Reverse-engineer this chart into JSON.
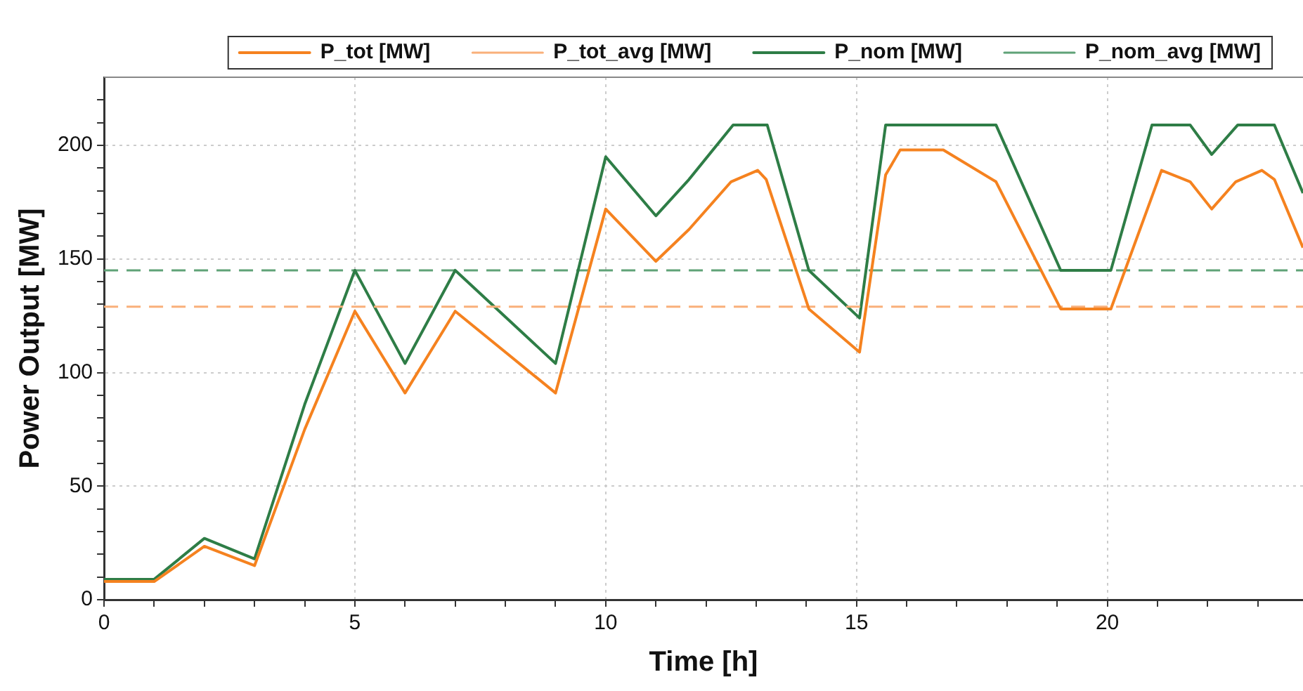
{
  "chart_data": {
    "type": "line",
    "xlabel": "Time [h]",
    "ylabel": "Power Output [MW]",
    "xlim": [
      0,
      23.9
    ],
    "ylim": [
      0,
      230
    ],
    "xticks": [
      0,
      {
        "value": 1,
        "label": null
      },
      {
        "value": 2,
        "label": null
      },
      {
        "value": 3,
        "label": null
      },
      {
        "value": 4,
        "label": null
      },
      5,
      {
        "value": 6,
        "label": null
      },
      {
        "value": 7,
        "label": null
      },
      {
        "value": 8,
        "label": null
      },
      {
        "value": 9,
        "label": null
      },
      10,
      {
        "value": 11,
        "label": null
      },
      {
        "value": 12,
        "label": null
      },
      {
        "value": 13,
        "label": null
      },
      {
        "value": 14,
        "label": null
      },
      15,
      {
        "value": 16,
        "label": null
      },
      {
        "value": 17,
        "label": null
      },
      {
        "value": 18,
        "label": null
      },
      {
        "value": 19,
        "label": null
      },
      20,
      {
        "value": 21,
        "label": null
      },
      {
        "value": 22,
        "label": null
      },
      {
        "value": 23,
        "label": null
      }
    ],
    "yticks": [
      0,
      {
        "value": 10,
        "label": null
      },
      {
        "value": 20,
        "label": null
      },
      {
        "value": 30,
        "label": null
      },
      {
        "value": 40,
        "label": null
      },
      50,
      {
        "value": 60,
        "label": null
      },
      {
        "value": 70,
        "label": null
      },
      {
        "value": 80,
        "label": null
      },
      {
        "value": 90,
        "label": null
      },
      100,
      {
        "value": 110,
        "label": null
      },
      {
        "value": 120,
        "label": null
      },
      {
        "value": 130,
        "label": null
      },
      {
        "value": 140,
        "label": null
      },
      150,
      {
        "value": 160,
        "label": null
      },
      {
        "value": 170,
        "label": null
      },
      {
        "value": 180,
        "label": null
      },
      {
        "value": 190,
        "label": null
      },
      200,
      {
        "value": 210,
        "label": null
      },
      {
        "value": 220,
        "label": null
      }
    ],
    "grid": true,
    "legend": "top",
    "marker": "none",
    "series": [
      {
        "name": "P_tot [MW]",
        "color": "#f5821f",
        "line_style": "solid",
        "x": [
          0,
          1,
          2,
          3,
          4,
          5,
          6,
          7,
          9,
          10,
          11,
          11.66,
          12.5,
          13.03,
          13.2,
          14.05,
          15.06,
          15.58,
          15.87,
          16.73,
          17.78,
          19.07,
          20.07,
          21.08,
          21.65,
          22.08,
          22.56,
          23.08,
          23.33,
          23.9
        ],
        "values": [
          8,
          8,
          23.5,
          15,
          75,
          127,
          91,
          127,
          91,
          172,
          149,
          163,
          184,
          189,
          185,
          128,
          109,
          187,
          198,
          198,
          184,
          128,
          128,
          189,
          184,
          172,
          184,
          189,
          185,
          155
        ]
      },
      {
        "name": "P_tot_avg [MW]",
        "color": "#f9b07a",
        "line_style": "dashed",
        "x": [
          0,
          23.9
        ],
        "values": [
          129,
          129
        ]
      },
      {
        "name": "P_nom [MW]",
        "color": "#2e7d46",
        "line_style": "solid",
        "x": [
          0,
          1,
          2,
          3,
          4,
          5,
          6,
          7,
          9,
          10,
          11,
          11.66,
          12.54,
          13.22,
          14.05,
          15.06,
          15.58,
          17.78,
          19.07,
          20.07,
          20.89,
          21.65,
          22.08,
          22.6,
          23.33,
          23.9
        ],
        "values": [
          9,
          9,
          27,
          18,
          86,
          145,
          104,
          145,
          104,
          195,
          169,
          185,
          209,
          209,
          145,
          124,
          209,
          209,
          145,
          145,
          209,
          209,
          196,
          209,
          209,
          179
        ]
      },
      {
        "name": "P_nom_avg [MW]",
        "color": "#5fa277",
        "line_style": "dashed",
        "x": [
          0,
          23.9
        ],
        "values": [
          145,
          145
        ]
      }
    ]
  }
}
